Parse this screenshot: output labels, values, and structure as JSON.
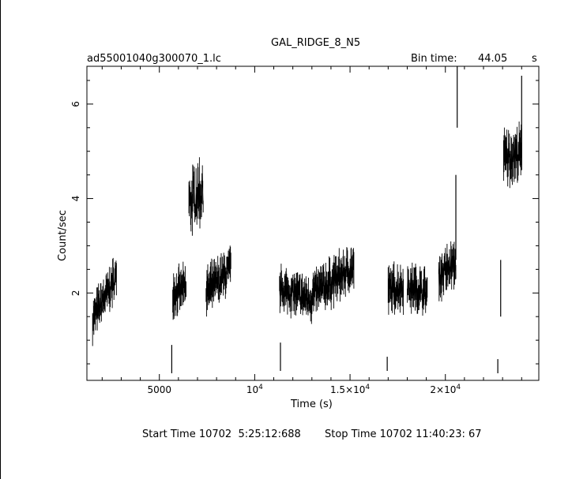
{
  "header": {
    "title": "GAL_RIDGE_8_N5",
    "filename": "ad55001040g300070_1.lc",
    "bin_label": "Bin time:",
    "bin_value": "44.05",
    "bin_unit": "s"
  },
  "footer": {
    "start_text": "Start Time 10702  5:25:12:688",
    "stop_text": "Stop Time 10702 11:40:23: 67"
  },
  "chart_data": {
    "type": "line",
    "title": "GAL_RIDGE_8_N5",
    "xlabel": "Time (s)",
    "ylabel": "Count/sec",
    "xlim": [
      1200,
      24900
    ],
    "ylim": [
      0.15,
      6.8
    ],
    "x_ticks": [
      {
        "value": 5000,
        "label": "5000"
      },
      {
        "value": 10000,
        "label": "10^4"
      },
      {
        "value": 15000,
        "label": "1.5×10^4"
      },
      {
        "value": 20000,
        "label": "2×10^4"
      }
    ],
    "y_ticks": [
      {
        "value": 2,
        "label": "2"
      },
      {
        "value": 4,
        "label": "4"
      },
      {
        "value": 6,
        "label": "6"
      }
    ],
    "segments": [
      {
        "x0": 1500,
        "x1": 2750,
        "y0": 1.45,
        "y1": 2.35,
        "noise": 0.45,
        "step": 22
      },
      {
        "x0": 5700,
        "x1": 6400,
        "y0": 2.0,
        "y1": 2.1,
        "noise": 0.45,
        "step": 22
      },
      {
        "x0": 6550,
        "x1": 7300,
        "y0": 3.9,
        "y1": 4.2,
        "noise": 0.75,
        "step": 22
      },
      {
        "x0": 7450,
        "x1": 8750,
        "y0": 2.0,
        "y1": 2.5,
        "noise": 0.5,
        "step": 22
      },
      {
        "x0": 11300,
        "x1": 13000,
        "y0": 2.1,
        "y1": 1.85,
        "noise": 0.45,
        "step": 22
      },
      {
        "x0": 13000,
        "x1": 15200,
        "y0": 1.95,
        "y1": 2.55,
        "noise": 0.5,
        "step": 22
      },
      {
        "x0": 17000,
        "x1": 17800,
        "y0": 2.05,
        "y1": 2.15,
        "noise": 0.5,
        "step": 22
      },
      {
        "x0": 18000,
        "x1": 19050,
        "y0": 2.15,
        "y1": 2.0,
        "noise": 0.5,
        "step": 22
      },
      {
        "x0": 19650,
        "x1": 20550,
        "y0": 2.35,
        "y1": 2.65,
        "noise": 0.5,
        "step": 22
      },
      {
        "x0": 23050,
        "x1": 24000,
        "y0": 4.85,
        "y1": 4.95,
        "noise": 0.6,
        "step": 22
      }
    ],
    "spikes": [
      {
        "x": 5650,
        "y_low": 0.3,
        "y_high": 0.9
      },
      {
        "x": 11350,
        "y_low": 0.35,
        "y_high": 0.95
      },
      {
        "x": 16950,
        "y_low": 0.35,
        "y_high": 0.65
      },
      {
        "x": 20620,
        "y_low": 5.5,
        "y_high": 6.8
      },
      {
        "x": 20550,
        "y_low": 2.7,
        "y_high": 4.5
      },
      {
        "x": 22750,
        "y_low": 0.3,
        "y_high": 0.6
      },
      {
        "x": 22900,
        "y_low": 1.5,
        "y_high": 2.7
      },
      {
        "x": 24000,
        "y_low": 4.6,
        "y_high": 6.6
      }
    ]
  }
}
